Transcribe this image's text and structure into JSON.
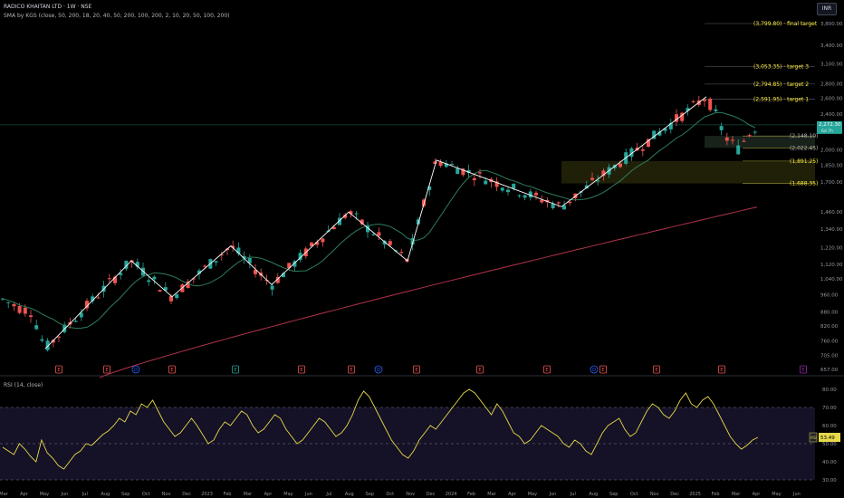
{
  "header": {
    "title": "RADICO KHAITAN LTD · 1W · NSE",
    "indicator": "SMA by KGS (close, 50, 200, 18, 20, 40, 50, 200, 100, 200, 2, 10, 20, 50, 100, 200)",
    "rsi_label": "RSI (14, close)",
    "currency_button": "INR"
  },
  "chart_data": [
    {
      "type": "candlestick",
      "symbol": "RADICO KHAITAN LTD",
      "exchange": "NSE",
      "timeframe": "1W",
      "y_scale": "log",
      "y_ticks": [
        "3,800.00",
        "3,400.00",
        "3,100.00",
        "2,800.00",
        "2,600.00",
        "2,400.00",
        "2,200.00",
        "2,000.00",
        "1,850.00",
        "1,700.00",
        "1,460.00",
        "1,340.00",
        "1,220.00",
        "1,120.00",
        "1,040.00",
        "960.00",
        "880.00",
        "820.00",
        "760.00",
        "705.00",
        "657.00"
      ],
      "x_ticks": [
        "Mar",
        "Apr",
        "May",
        "Jun",
        "Jul",
        "Aug",
        "Sep",
        "Oct",
        "Nov",
        "Dec",
        "2023",
        "Feb",
        "Mar",
        "Apr",
        "May",
        "Jun",
        "Jul",
        "Aug",
        "Sep",
        "Oct",
        "Nov",
        "Dec",
        "2024",
        "Feb",
        "Mar",
        "Apr",
        "May",
        "Jun",
        "Jul",
        "Aug",
        "Sep",
        "Oct",
        "Nov",
        "Dec",
        "2025",
        "Feb",
        "Mar",
        "Apr",
        "May",
        "Jun"
      ],
      "last_price": "2,272.30",
      "last_price_sub": "6d 7h",
      "colors": {
        "up": "#26a69a",
        "down": "#ef5350",
        "sma_short": "#2e7d5b",
        "sma_long": "#b0344a",
        "zigzag": "#ffffff",
        "target": "#ffeb3b"
      },
      "price_levels": [
        {
          "value": 3799.8,
          "label": "(3,799.80) · final target"
        },
        {
          "value": 3053.35,
          "label": "(3,053.35) · target 3"
        },
        {
          "value": 2794.85,
          "label": "(2,794.85) · target 2"
        },
        {
          "value": 2591.95,
          "label": "(2,591.95) · target 1"
        },
        {
          "value": 2148.1,
          "label": "(2,148.10)"
        },
        {
          "value": 2022.45,
          "label": "(2,022.45)"
        },
        {
          "value": 1891.25,
          "label": "(1,891.25)"
        },
        {
          "value": 1688.35,
          "label": "(1,688.35)"
        }
      ],
      "zigzag_points": [
        {
          "x": "2022-05",
          "y": 730
        },
        {
          "x": "2022-09",
          "y": 1140
        },
        {
          "x": "2022-11",
          "y": 950
        },
        {
          "x": "2023-03",
          "y": 1230
        },
        {
          "x": "2023-05",
          "y": 1010
        },
        {
          "x": "2023-08",
          "y": 1460
        },
        {
          "x": "2023-11",
          "y": 1140
        },
        {
          "x": "2023-12",
          "y": 1900
        },
        {
          "x": "2024-06",
          "y": 1500
        },
        {
          "x": "2024-12",
          "y": 2620
        }
      ],
      "event_markers": [
        "E",
        "E",
        "D",
        "E",
        "E",
        "E",
        "E",
        "D",
        "E",
        "E",
        "E",
        "D",
        "E",
        "E",
        "E",
        "E"
      ]
    },
    {
      "type": "line",
      "title": "RSI (14, close)",
      "y_ticks": [
        "80.00",
        "70.00",
        "60.00",
        "50.00",
        "40.00",
        "30.00"
      ],
      "levels": [
        70,
        50,
        30
      ],
      "last_value": "53.49",
      "value_label": "RSI",
      "approx_values": [
        48,
        46,
        44,
        50,
        47,
        43,
        40,
        52,
        45,
        42,
        38,
        36,
        40,
        44,
        46,
        50,
        49,
        52,
        55,
        57,
        60,
        64,
        62,
        68,
        66,
        72,
        70,
        74,
        68,
        62,
        58,
        54,
        56,
        60,
        64,
        60,
        55,
        50,
        52,
        58,
        62,
        60,
        64,
        68,
        66,
        60,
        56,
        58,
        62,
        66,
        64,
        58,
        54,
        50,
        52,
        56,
        60,
        64,
        62,
        58,
        54,
        56,
        60,
        66,
        74,
        79,
        76,
        70,
        64,
        58,
        52,
        48,
        44,
        42,
        46,
        52,
        56,
        60,
        58,
        62,
        66,
        70,
        74,
        78,
        80,
        78,
        74,
        70,
        66,
        72,
        68,
        62,
        56,
        54,
        50,
        52,
        56,
        60,
        58,
        56,
        54,
        50,
        48,
        52,
        50,
        46,
        44,
        50,
        56,
        60,
        62,
        64,
        58,
        54,
        56,
        62,
        68,
        72,
        70,
        66,
        64,
        68,
        74,
        78,
        72,
        70,
        74,
        76,
        72,
        66,
        60,
        54,
        50,
        47,
        49,
        52,
        53.49
      ]
    }
  ]
}
